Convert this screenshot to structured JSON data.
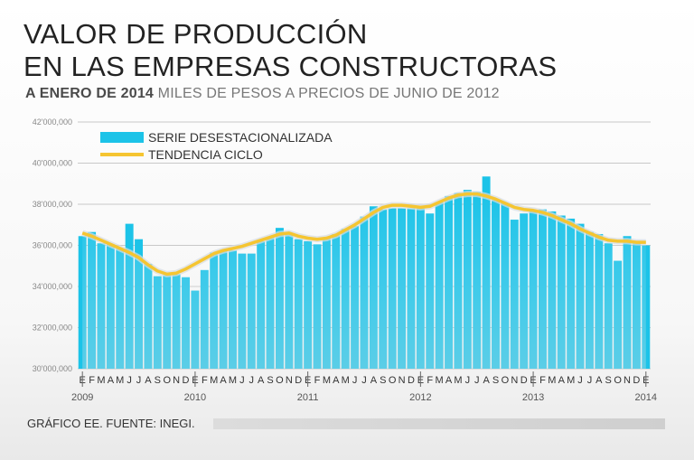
{
  "header": {
    "title_line1": "VALOR DE PRODUCCIÓN",
    "title_line2": "EN LAS EMPRESAS CONSTRUCTORAS",
    "subtitle_bold": "A ENERO DE 2014",
    "subtitle_light": "MILES DE PESOS A PRECIOS DE JUNIO DE 2012"
  },
  "footer": {
    "source": "GRÁFICO EE. FUENTE: INEGI."
  },
  "colors": {
    "bars": "#1cc3e8",
    "trend": "#f5c531",
    "grid": "#c8c8c8"
  },
  "chart_data": {
    "type": "bar",
    "title": "VALOR DE PRODUCCIÓN EN LAS EMPRESAS CONSTRUCTORAS",
    "ylabel": "MILES DE PESOS A PRECIOS DE JUNIO DE 2012",
    "ylim": [
      30000000,
      42000000
    ],
    "y_ticks": [
      30000000,
      32000000,
      34000000,
      36000000,
      38000000,
      40000000,
      42000000
    ],
    "y_tick_labels": [
      "30'000,000",
      "32'000,000",
      "34'000,000",
      "36'000,000",
      "38'000,000",
      "40'000,000",
      "42'000,000"
    ],
    "month_labels": [
      "E",
      "F",
      "M",
      "A",
      "M",
      "J",
      "J",
      "A",
      "S",
      "O",
      "N",
      "D",
      "E",
      "F",
      "M",
      "A",
      "M",
      "J",
      "J",
      "A",
      "S",
      "O",
      "N",
      "D",
      "E",
      "F",
      "M",
      "A",
      "M",
      "J",
      "J",
      "A",
      "S",
      "O",
      "N",
      "D",
      "E",
      "F",
      "M",
      "A",
      "M",
      "J",
      "J",
      "A",
      "S",
      "O",
      "N",
      "D",
      "E",
      "F",
      "M",
      "A",
      "M",
      "J",
      "J",
      "A",
      "S",
      "O",
      "N",
      "D",
      "E"
    ],
    "year_labels": [
      {
        "label": "2009",
        "index": 0
      },
      {
        "label": "2010",
        "index": 12
      },
      {
        "label": "2011",
        "index": 24
      },
      {
        "label": "2012",
        "index": 36
      },
      {
        "label": "2013",
        "index": 48
      },
      {
        "label": "2014",
        "index": 60
      }
    ],
    "legend": [
      "SERIE DESESTACIONALIZADA",
      "TENDENCIA CICLO"
    ],
    "series": [
      {
        "name": "SERIE DESESTACIONALIZADA",
        "values": [
          36450000,
          36650000,
          36100000,
          36050000,
          35850000,
          37050000,
          36300000,
          35100000,
          34500000,
          34550000,
          34600000,
          34450000,
          33800000,
          34800000,
          35650000,
          35750000,
          35750000,
          35600000,
          35600000,
          36200000,
          36400000,
          36850000,
          36600000,
          36300000,
          36200000,
          36050000,
          36400000,
          36550000,
          36800000,
          36950000,
          37400000,
          37900000,
          37750000,
          37800000,
          37800000,
          37800000,
          37800000,
          37550000,
          38100000,
          38400000,
          38550000,
          38700000,
          38600000,
          39350000,
          38200000,
          38050000,
          37250000,
          37550000,
          37650000,
          37750000,
          37650000,
          37450000,
          37300000,
          37050000,
          36650000,
          36550000,
          36100000,
          35250000,
          36450000,
          36150000,
          36000000
        ]
      },
      {
        "name": "TENDENCIA CICLO",
        "values": [
          36600000,
          36450000,
          36250000,
          36050000,
          35850000,
          35650000,
          35400000,
          35050000,
          34750000,
          34600000,
          34650000,
          34850000,
          35100000,
          35350000,
          35600000,
          35750000,
          35850000,
          35950000,
          36100000,
          36250000,
          36400000,
          36550000,
          36600000,
          36450000,
          36350000,
          36300000,
          36350000,
          36500000,
          36750000,
          37000000,
          37300000,
          37600000,
          37850000,
          37950000,
          37950000,
          37900000,
          37850000,
          37900000,
          38100000,
          38300000,
          38450000,
          38500000,
          38500000,
          38400000,
          38250000,
          38050000,
          37850000,
          37750000,
          37700000,
          37600000,
          37450000,
          37250000,
          37050000,
          36800000,
          36600000,
          36400000,
          36250000,
          36200000,
          36200000,
          36150000,
          36150000
        ]
      }
    ]
  }
}
